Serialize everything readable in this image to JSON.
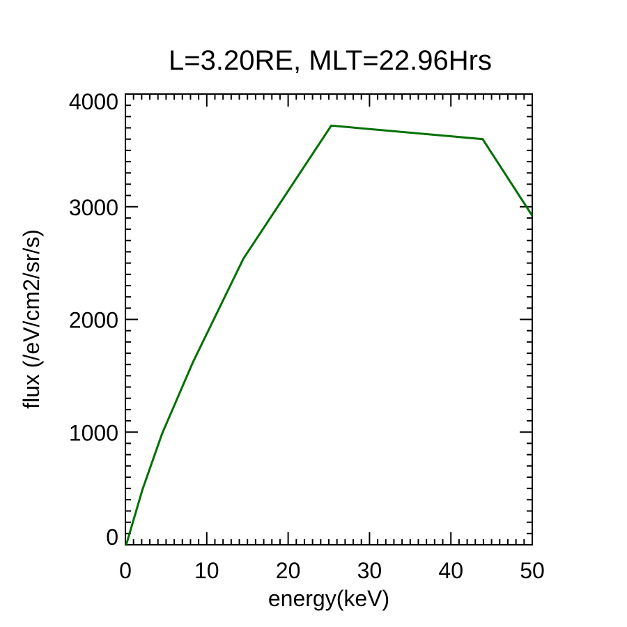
{
  "chart_data": {
    "type": "line",
    "title": "L=3.20RE, MLT=22.96Hrs",
    "xlabel": "energy(keV)",
    "ylabel": "flux (/eV/cm2/sr/s)",
    "xlim": [
      0,
      50
    ],
    "ylim": [
      0,
      4000
    ],
    "xticks": [
      "0",
      "10",
      "20",
      "30",
      "40",
      "50"
    ],
    "yticks": [
      "0",
      "1000",
      "2000",
      "3000",
      "4000"
    ],
    "grid": false,
    "series": [
      {
        "color": "#007000",
        "x": [
          0.1,
          2.1,
          4.5,
          8.3,
          14.5,
          25.3,
          43.9,
          50
        ],
        "y": [
          0,
          490,
          985,
          1620,
          2540,
          3720,
          3600,
          2920
        ]
      }
    ]
  }
}
